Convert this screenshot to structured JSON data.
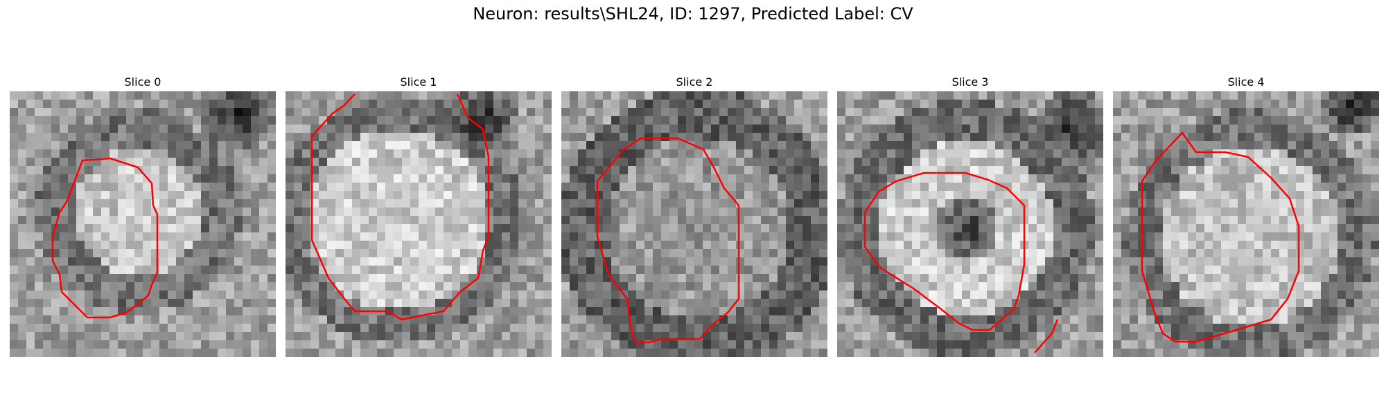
{
  "figure": {
    "title": "Neuron: results\\SHL24, ID: 1297, Predicted Label: CV"
  },
  "panels": [
    {
      "title": "Slice 0"
    },
    {
      "title": "Slice 1"
    },
    {
      "title": "Slice 2"
    },
    {
      "title": "Slice 3"
    },
    {
      "title": "Slice 4"
    }
  ],
  "colors": {
    "contour": "#ff0000",
    "background": "#ffffff"
  }
}
